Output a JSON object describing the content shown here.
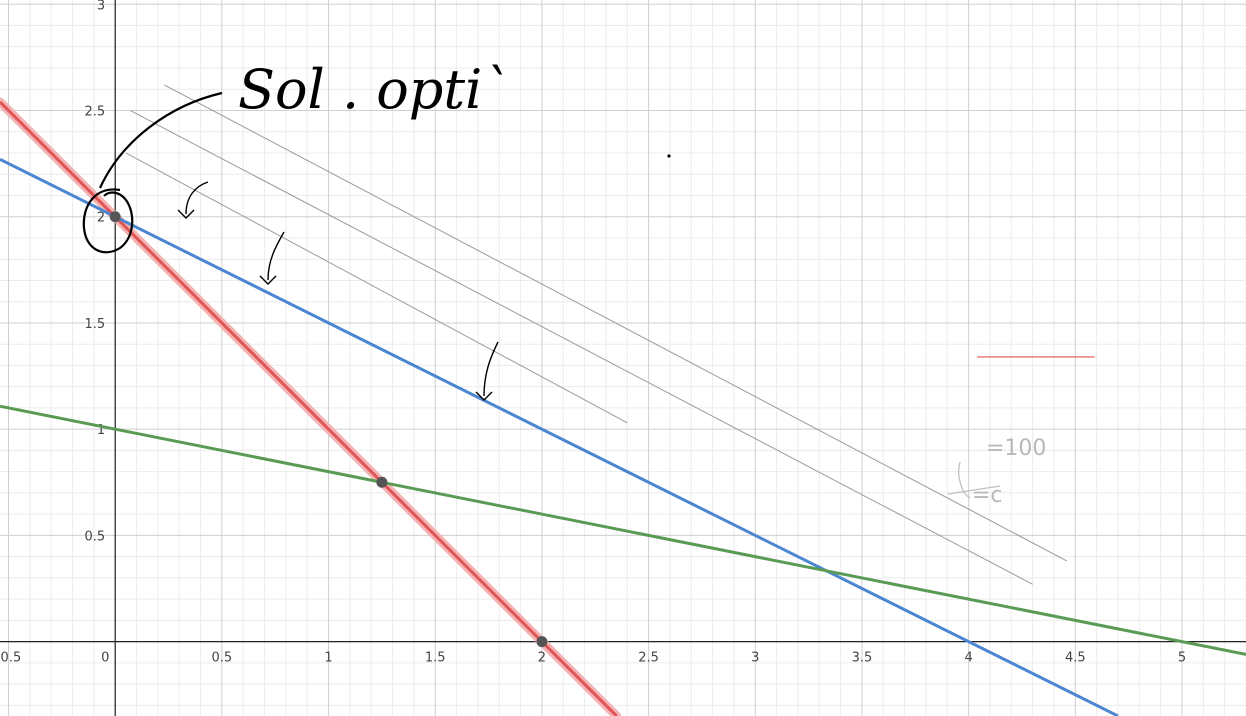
{
  "chart_data": {
    "type": "line",
    "title": "",
    "xlabel": "",
    "ylabel": "",
    "xlim": [
      -0.54,
      5.3
    ],
    "ylim": [
      -0.35,
      3.02
    ],
    "grid": true,
    "minor_grid_step": 0.1,
    "major_grid_step": 0.5,
    "x_ticks": [
      "-0.5",
      "0",
      "0.5",
      "1",
      "1.5",
      "2",
      "2.5",
      "3",
      "3.5",
      "4",
      "4.5",
      "5"
    ],
    "x_tick_values": [
      -0.5,
      0,
      0.5,
      1,
      1.5,
      2,
      2.5,
      3,
      3.5,
      4,
      4.5,
      5
    ],
    "y_ticks": [
      "0.5",
      "1",
      "1.5",
      "2",
      "2.5",
      "3"
    ],
    "y_tick_values": [
      0.5,
      1,
      1.5,
      2,
      2.5,
      3
    ],
    "series": [
      {
        "color": "#e05555",
        "glow": "#f4b3b3",
        "points": [
          [
            -0.54,
            2.54
          ],
          [
            2.35,
            -0.35
          ]
        ]
      },
      {
        "color": "#4b86d1",
        "points": [
          [
            -0.54,
            2.27
          ],
          [
            4.7,
            -0.35
          ]
        ]
      },
      {
        "color": "#5a9a55",
        "points": [
          [
            -0.54,
            1.108
          ],
          [
            5.3,
            -0.06
          ]
        ]
      }
    ],
    "guide_lines": [
      {
        "color": "#9a9a9a",
        "points": [
          [
            0.05,
            2.3
          ],
          [
            2.4,
            1.03
          ]
        ]
      },
      {
        "color": "#9a9a9a",
        "points": [
          [
            0.07,
            2.5
          ],
          [
            4.3,
            0.27
          ]
        ]
      },
      {
        "color": "#9a9a9a",
        "points": [
          [
            0.23,
            2.62
          ],
          [
            4.46,
            0.38
          ]
        ]
      }
    ],
    "points": [
      [
        0,
        2
      ],
      [
        1.25,
        0.75
      ],
      [
        2,
        0
      ]
    ],
    "point_color": "#555555",
    "red_segment": {
      "color": "#e05555",
      "points": [
        [
          4.04,
          1.34
        ],
        [
          4.59,
          1.34
        ]
      ]
    }
  },
  "annotations": {
    "handwriting": "Sol . opti`",
    "handwriting_color": "#000000",
    "faint_note_line1": "=100",
    "faint_note_line2": "=c",
    "faint_color": "#b8b8b8"
  }
}
